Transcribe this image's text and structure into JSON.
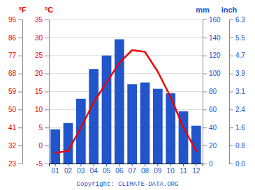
{
  "chart_data": {
    "type": "bar",
    "categories": [
      "01",
      "02",
      "03",
      "04",
      "05",
      "06",
      "07",
      "08",
      "09",
      "10",
      "11",
      "12"
    ],
    "series": [
      {
        "type": "bar",
        "color": "#2255cc",
        "values": [
          38,
          45,
          72,
          105,
          120,
          138,
          88,
          90,
          83,
          78,
          58,
          42
        ]
      },
      {
        "type": "line",
        "axis": "y2",
        "color": "#ee0000",
        "values": [
          -2.0,
          -1.5,
          5.0,
          12.0,
          17.5,
          23.0,
          26.5,
          26.0,
          20.5,
          13.5,
          5.0,
          -1.5
        ]
      }
    ],
    "y_label": "mm",
    "ylim": [
      0,
      160
    ],
    "yticks": [
      0,
      20,
      40,
      60,
      80,
      100,
      120,
      140,
      160
    ],
    "y2_label": "°C",
    "y2lim": [
      -5,
      35
    ],
    "y2ticks": [
      -5,
      0,
      5,
      10,
      15,
      20,
      25,
      30,
      35
    ],
    "y3_label": "°F",
    "y3lim": [
      23,
      95
    ],
    "y3ticks": [
      23,
      32,
      41,
      50,
      59,
      68,
      77,
      86,
      95
    ],
    "y4_label": "inch",
    "y4lim": [
      0,
      160
    ],
    "y4ticks": [
      {
        "value": 0,
        "label": "0.0"
      },
      {
        "value": 20,
        "label": "0.8"
      },
      {
        "value": 40,
        "label": "1.6"
      },
      {
        "value": 60,
        "label": "2.4"
      },
      {
        "value": 80,
        "label": "3.1"
      },
      {
        "value": 100,
        "label": "3.9"
      },
      {
        "value": 120,
        "label": "4.7"
      },
      {
        "value": 140,
        "label": "5.5"
      },
      {
        "value": 160,
        "label": "6.3"
      }
    ],
    "grid": true,
    "annotations": [
      "Copyright: CLIMATE-DATA.ORG"
    ]
  }
}
